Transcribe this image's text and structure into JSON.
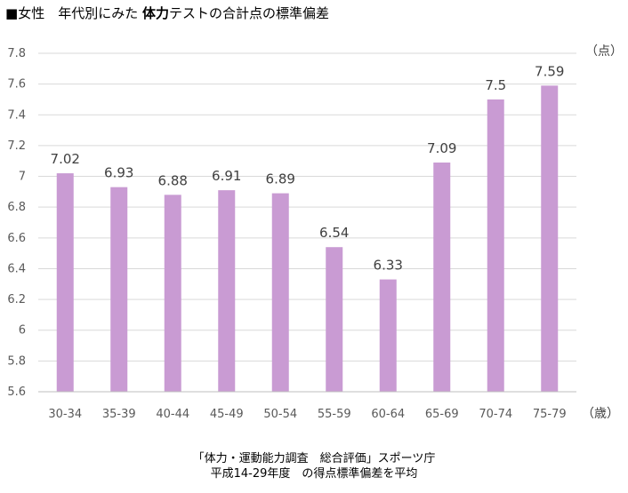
{
  "title": {
    "marker": "■",
    "part1": "女性　年代別にみた",
    "part2_bold": "体力",
    "part3": "テストの合計点の標準偏差"
  },
  "y_unit": "（点）",
  "x_unit": "（歳）",
  "source": {
    "line1": "「体力・運動能力調査　総合評価」スポーツ庁",
    "line2": "平成14-29年度　の得点標準偏差を平均"
  },
  "colors": {
    "bar": "#C99BD3",
    "grid": "#D9D9D9",
    "axis": "#BFBFBF"
  },
  "chart_data": {
    "type": "bar",
    "categories": [
      "30-34",
      "35-39",
      "40-44",
      "45-49",
      "50-54",
      "55-59",
      "60-64",
      "65-69",
      "70-74",
      "75-79"
    ],
    "values": [
      7.02,
      6.93,
      6.88,
      6.91,
      6.89,
      6.54,
      6.33,
      7.09,
      7.5,
      7.59
    ],
    "value_labels": [
      "7.02",
      "6.93",
      "6.88",
      "6.91",
      "6.89",
      "6.54",
      "6.33",
      "7.09",
      "7.5",
      "7.59"
    ],
    "y_ticks": [
      5.6,
      5.8,
      6,
      6.2,
      6.4,
      6.6,
      6.8,
      7,
      7.2,
      7.4,
      7.6,
      7.8
    ],
    "y_tick_labels": [
      "5.6",
      "5.8",
      "6",
      "6.2",
      "6.4",
      "6.6",
      "6.8",
      "7",
      "7.2",
      "7.4",
      "7.6",
      "7.8"
    ],
    "ylim": [
      5.6,
      7.8
    ],
    "grid": true,
    "legend": "none"
  }
}
